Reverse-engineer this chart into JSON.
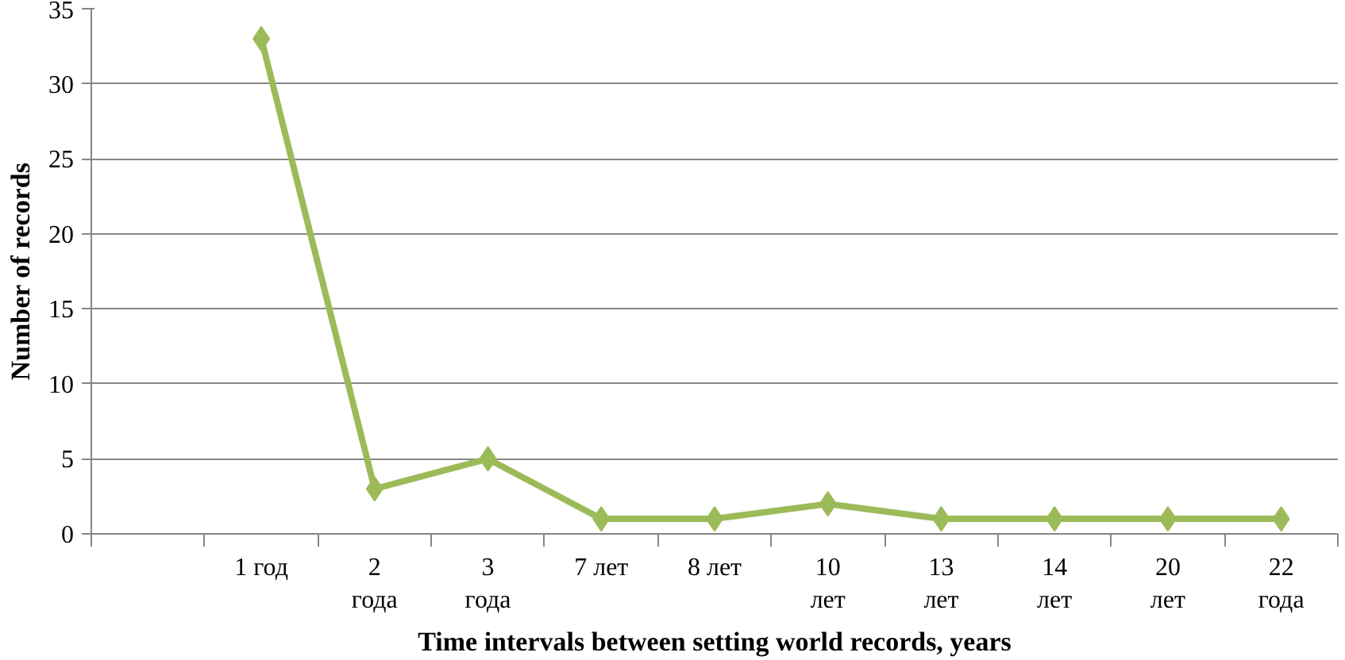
{
  "chart_data": {
    "type": "line",
    "xlabel": "Time intervals between setting world records, years",
    "ylabel": "Number of records",
    "categories": [
      null,
      "1 год",
      "2\nгода",
      "3\nгода",
      "7 лет",
      "8 лет",
      "10\nлет",
      "13\nлет",
      "14\nлет",
      "20\nлет",
      "22\nгода"
    ],
    "series": [
      {
        "color": "#9bbb59",
        "values": [
          null,
          33,
          3,
          5,
          1,
          1,
          2,
          1,
          1,
          1,
          1
        ]
      }
    ],
    "ylim": [
      0,
      35
    ],
    "yticks": [
      0,
      5,
      10,
      15,
      20,
      25,
      30,
      35
    ],
    "grid": "y",
    "marker": "diamond",
    "line_style": "solid"
  }
}
